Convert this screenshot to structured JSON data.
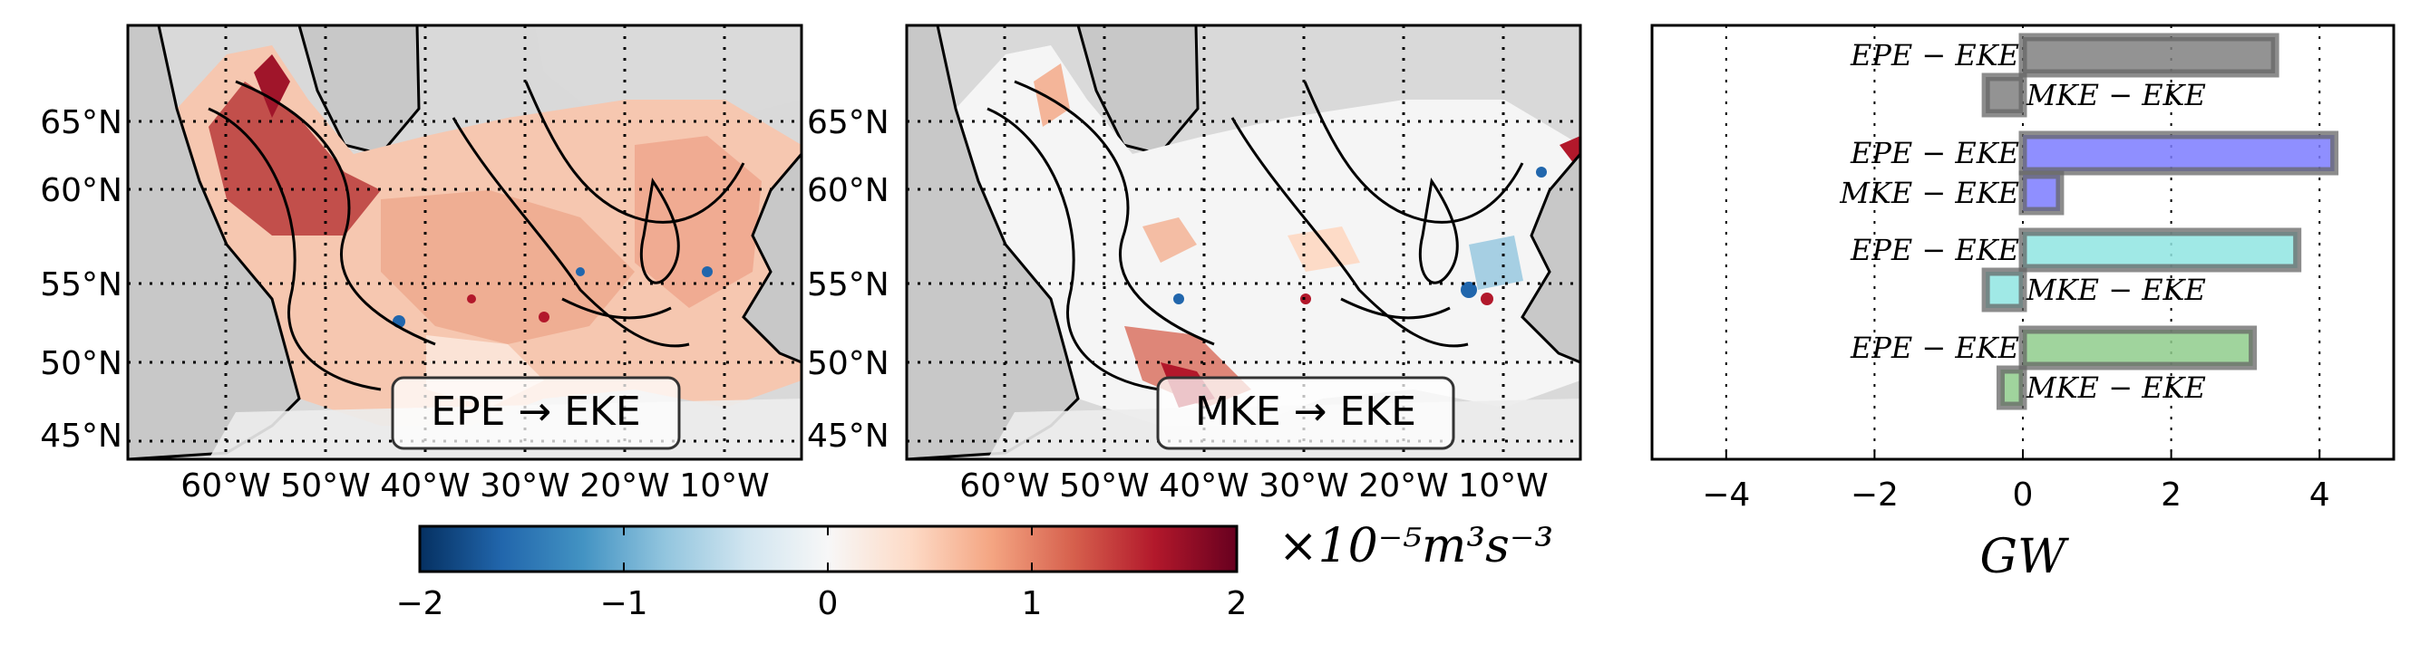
{
  "maps": [
    {
      "label": "EPE → EKE",
      "lat_labels": [
        "65°N",
        "60°N",
        "55°N",
        "50°N",
        "45°N"
      ],
      "lon_labels": [
        "60°W",
        "50°W",
        "40°W",
        "30°W",
        "20°W",
        "10°W"
      ]
    },
    {
      "label": "MKE → EKE",
      "lat_labels": [
        "65°N",
        "60°N",
        "55°N",
        "50°N",
        "45°N"
      ],
      "lon_labels": [
        "60°W",
        "50°W",
        "40°W",
        "30°W",
        "20°W",
        "10°W"
      ]
    }
  ],
  "colorbar": {
    "ticks": [
      "−2",
      "−1",
      "0",
      "1",
      "2"
    ],
    "range": [
      -2,
      2
    ],
    "unit_label": "×10⁻⁵m³s⁻³",
    "colormap": "RdBu_r"
  },
  "chart_data": {
    "type": "bar",
    "orientation": "horizontal",
    "xlabel": "GW",
    "xlim": [
      -5,
      5
    ],
    "xticks": [
      "−4",
      "−2",
      "0",
      "2",
      "4"
    ],
    "xtick_values": [
      -4,
      -2,
      0,
      2,
      4
    ],
    "grid": "vertical dotted",
    "groups": [
      {
        "color": "#808080",
        "bars": [
          {
            "name": "EPE − EKE",
            "value": 3.4
          },
          {
            "name": "MKE − EKE",
            "value": -0.5
          }
        ]
      },
      {
        "color": "#7b7bff",
        "bars": [
          {
            "name": "EPE − EKE",
            "value": 4.2
          },
          {
            "name": "MKE − EKE",
            "value": 0.5
          }
        ]
      },
      {
        "color": "#8fe5e2",
        "bars": [
          {
            "name": "EPE − EKE",
            "value": 3.7
          },
          {
            "name": "MKE − EKE",
            "value": -0.5
          }
        ]
      },
      {
        "color": "#8fcd8c",
        "bars": [
          {
            "name": "EPE − EKE",
            "value": 3.1
          },
          {
            "name": "MKE − EKE",
            "value": -0.3
          }
        ]
      }
    ]
  }
}
